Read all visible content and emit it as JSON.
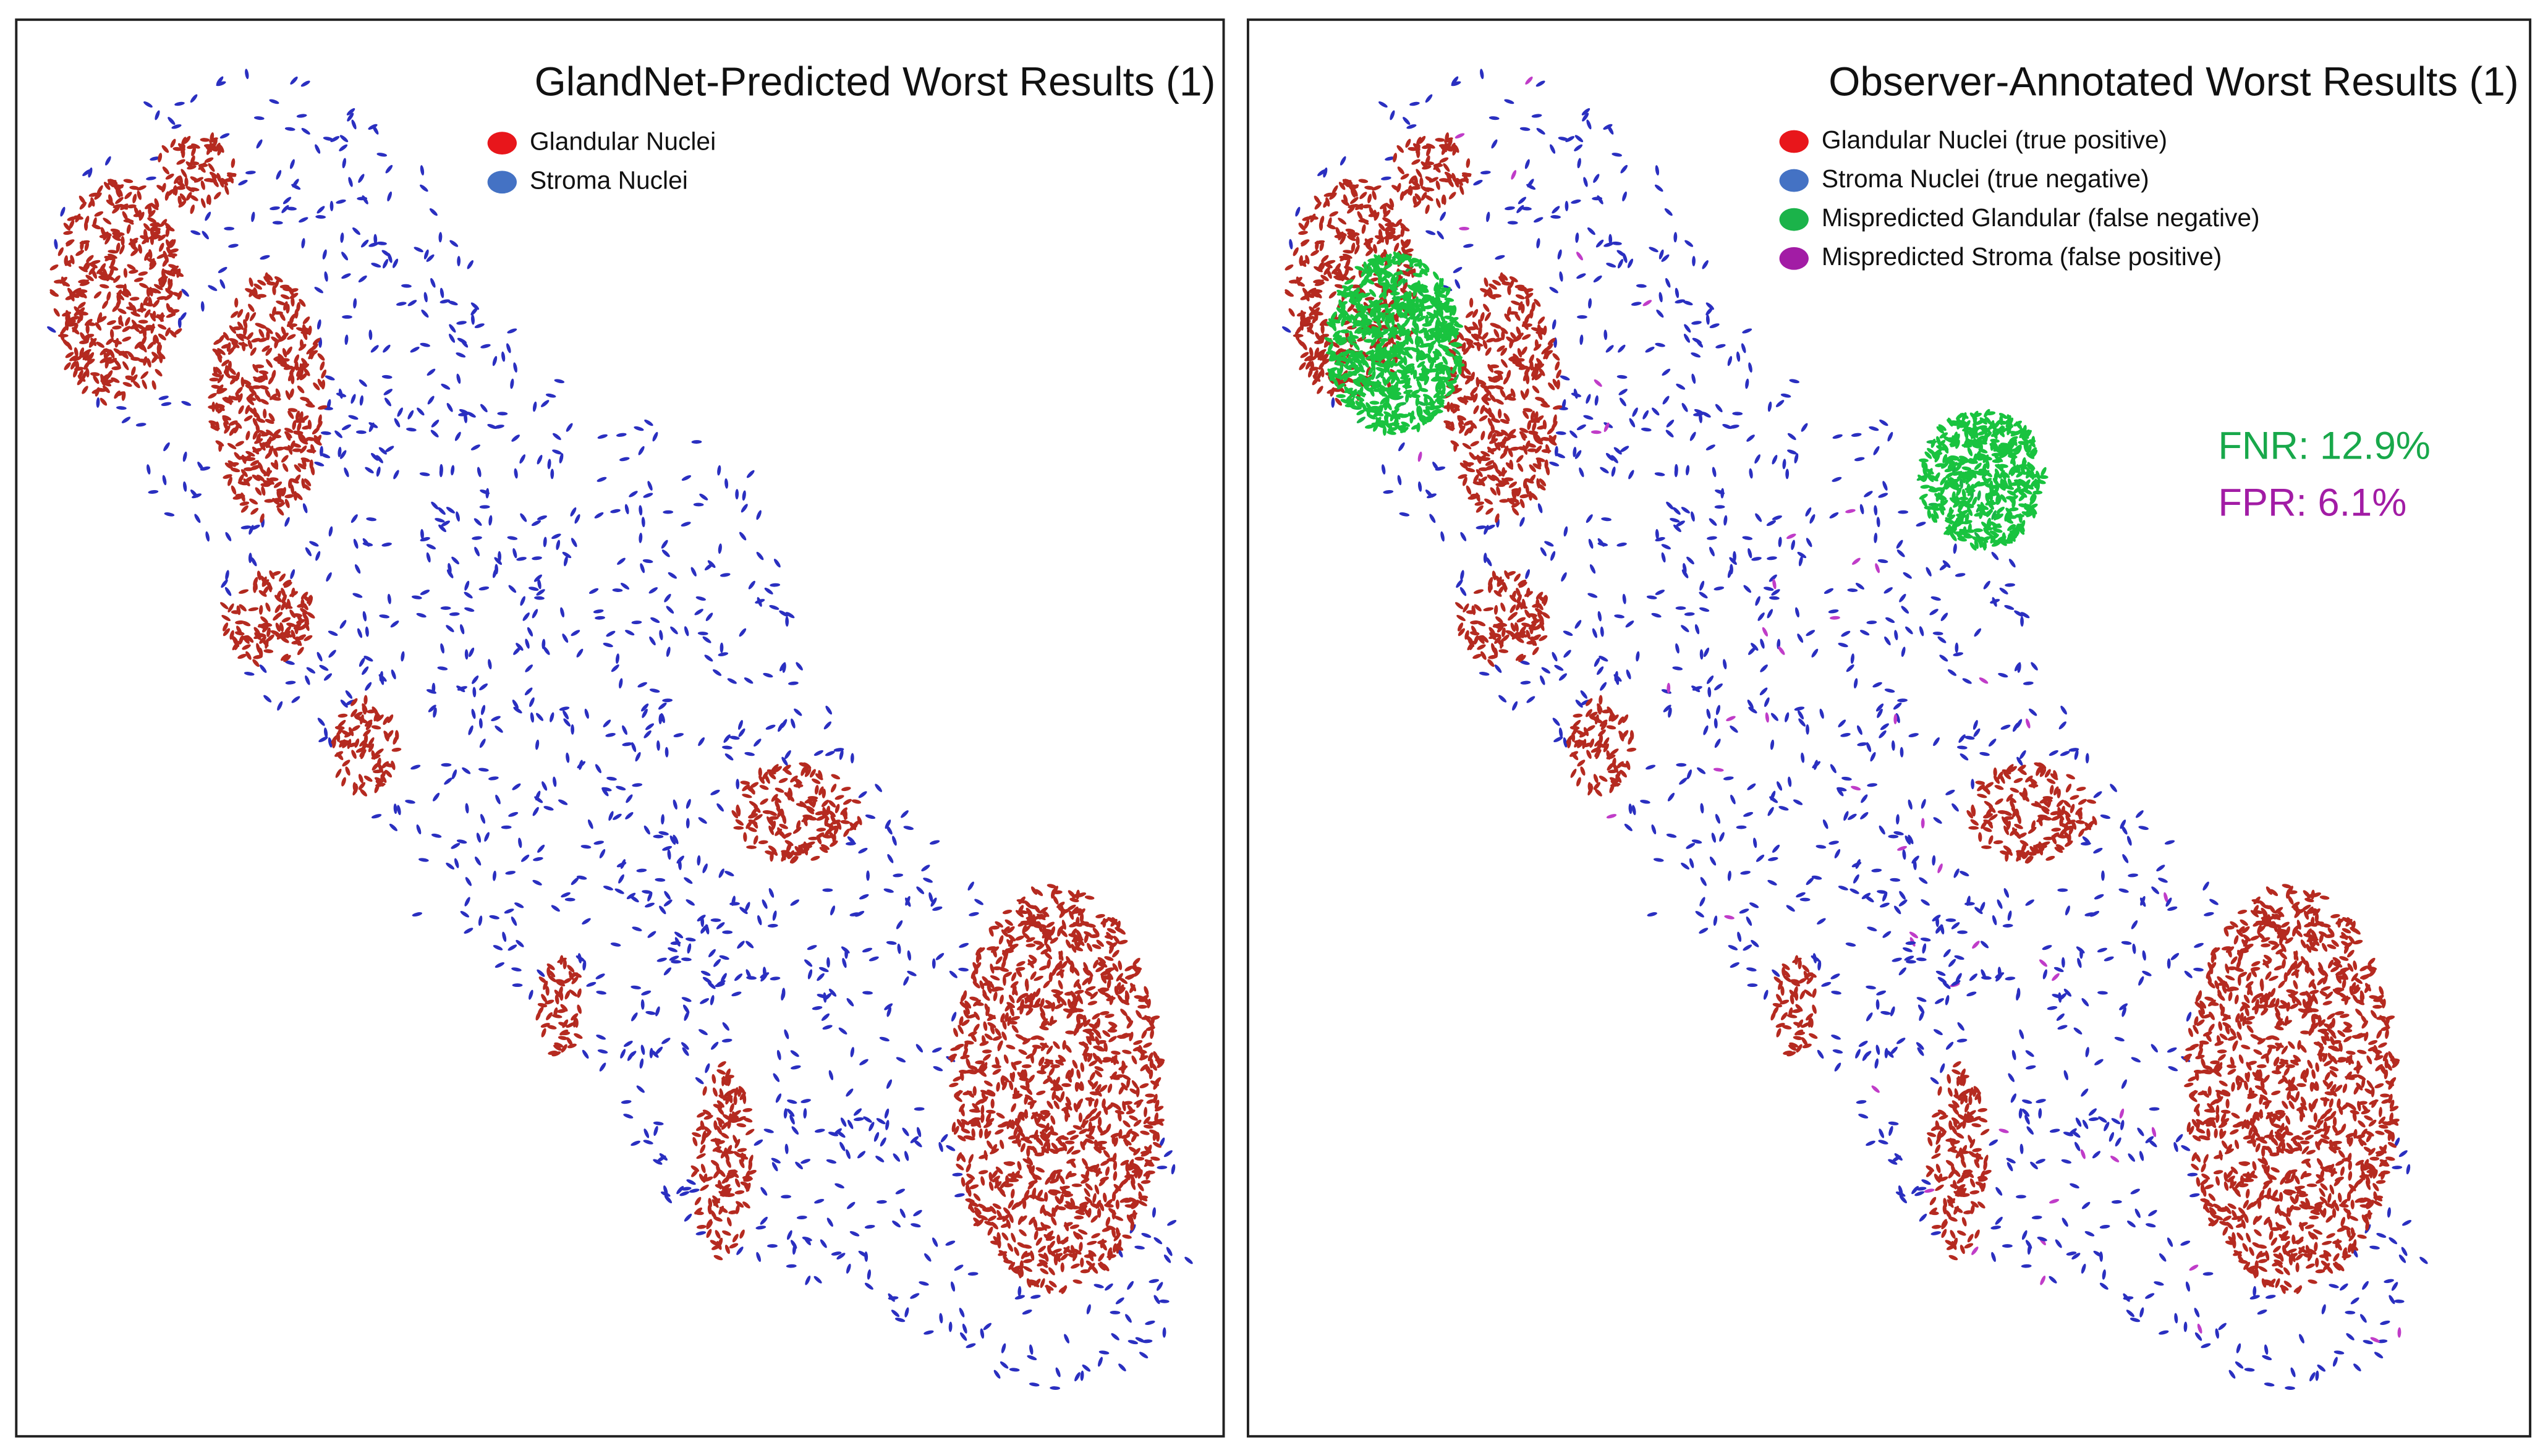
{
  "panels": [
    {
      "title": "GlandNet-Predicted Worst Results (1)",
      "legend": [
        "Glandular Nuclei",
        "Stroma Nuclei"
      ]
    },
    {
      "title": "Observer-Annotated Worst Results (1)",
      "legend": [
        "Glandular Nuclei (true positive)",
        "Stroma Nuclei (true negative)",
        "Mispredicted Glandular (false negative)",
        "Mispredicted Stroma (false positive)"
      ],
      "metrics": [
        "FNR: 12.9%",
        "FPR: 6.1%"
      ]
    }
  ]
}
